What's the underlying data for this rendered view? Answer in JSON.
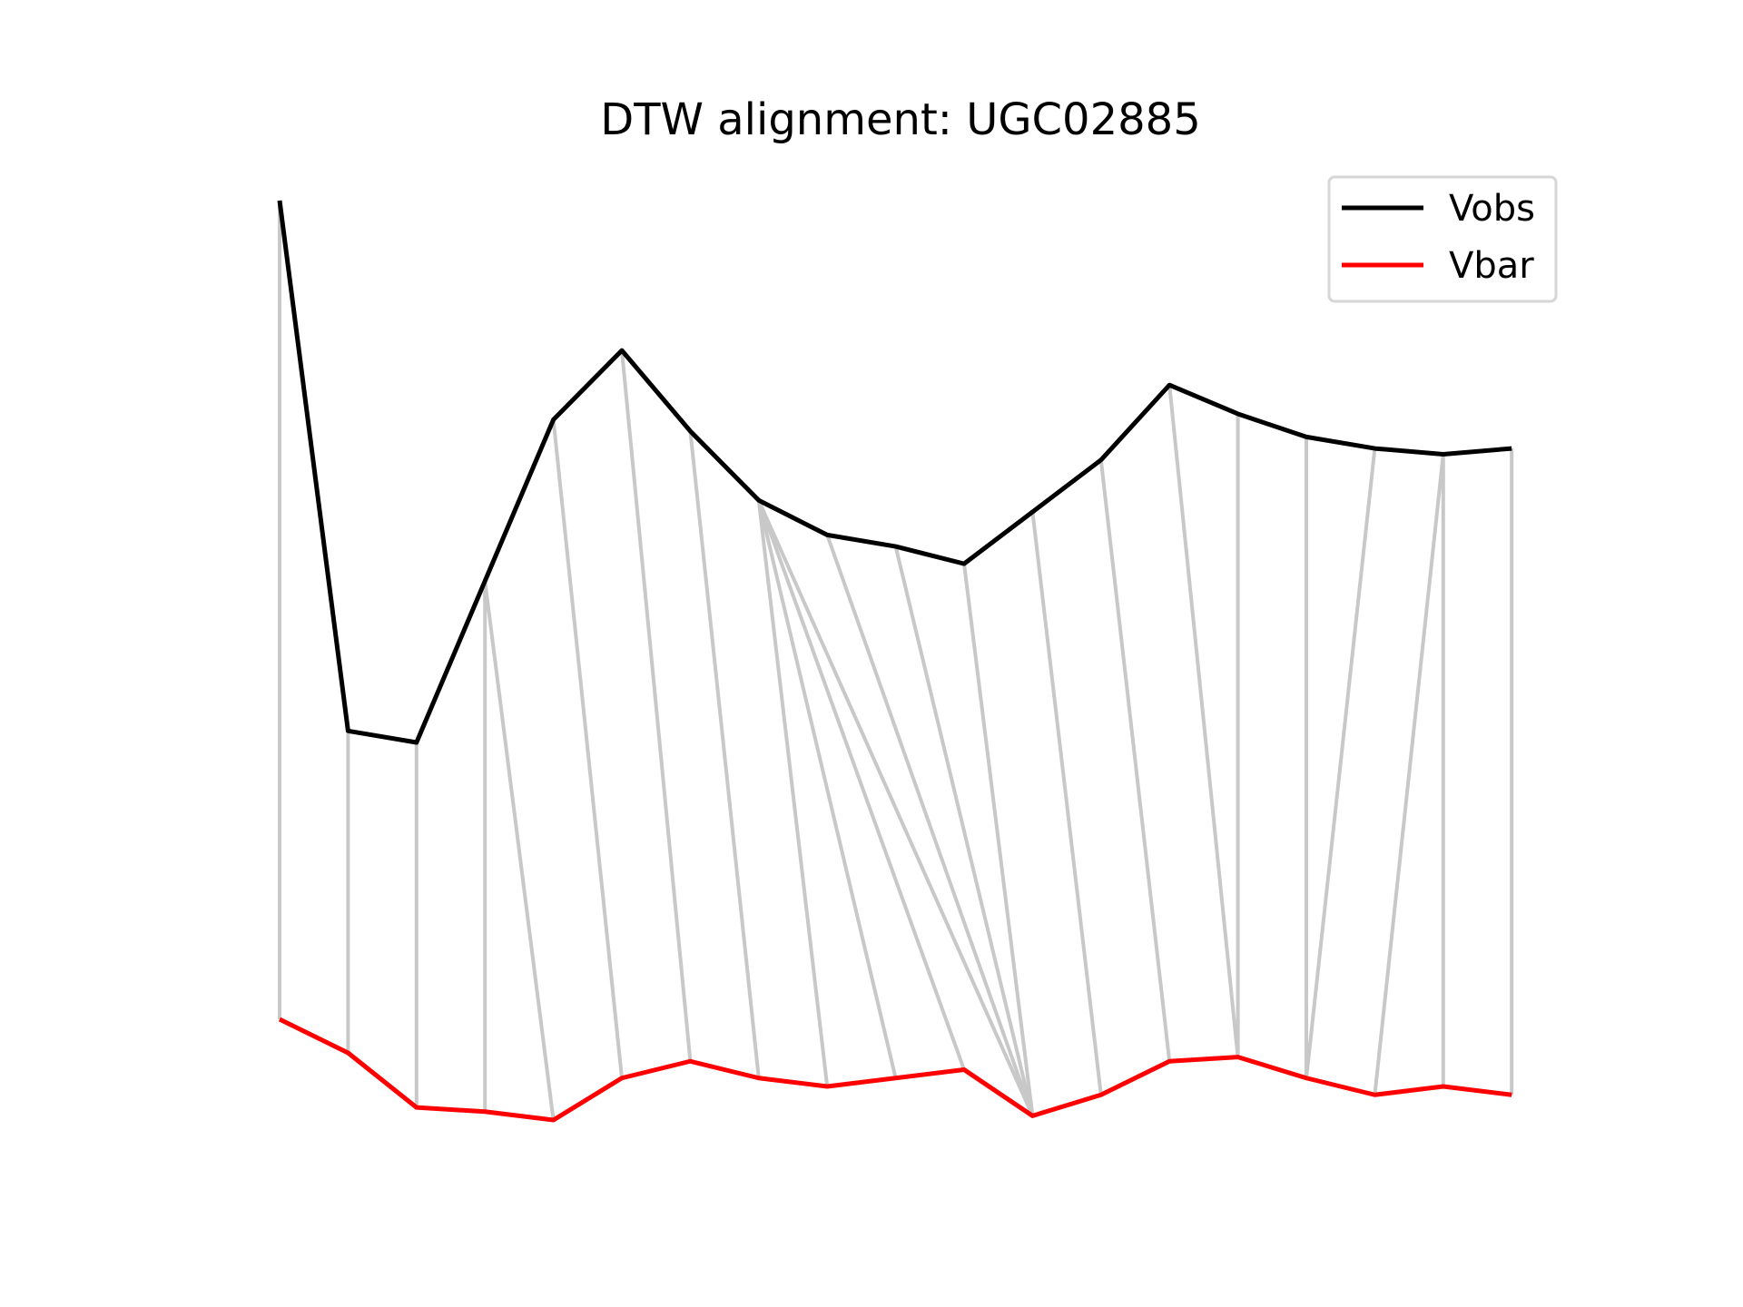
{
  "chart_data": {
    "type": "line",
    "title": "DTW alignment: UGC02885",
    "xlabel": "",
    "ylabel": "",
    "axes_visible": false,
    "grid": false,
    "legend_position": "top-right",
    "colors": {
      "background": "#ffffff",
      "connector": "#c8c8c8",
      "legend_border": "#d6d6d6"
    },
    "series": [
      {
        "name": "Vobs",
        "color": "#000000",
        "x": [
          0,
          1,
          2,
          3,
          4,
          5,
          6,
          7,
          8,
          9,
          10,
          11,
          12,
          13,
          14,
          15,
          16,
          17,
          18
        ],
        "values": [
          1.0,
          0.54,
          0.53,
          0.67,
          0.81,
          0.87,
          0.8,
          0.74,
          0.71,
          0.7,
          0.685,
          0.73,
          0.775,
          0.84,
          0.815,
          0.795,
          0.785,
          0.78,
          0.785
        ]
      },
      {
        "name": "Vbar",
        "color": "#ff0000",
        "x": [
          0,
          1,
          2,
          3,
          4,
          5,
          6,
          7,
          8,
          9,
          10,
          11,
          12,
          13,
          14,
          15,
          16,
          17,
          18
        ],
        "values": [
          0.12,
          0.08,
          0.015,
          0.01,
          0.0,
          0.05,
          0.07,
          0.05,
          0.04,
          0.05,
          0.06,
          0.005,
          0.03,
          0.07,
          0.075,
          0.05,
          0.03,
          0.04,
          0.03
        ]
      }
    ],
    "alignment_pairs": [
      [
        0,
        0
      ],
      [
        1,
        1
      ],
      [
        2,
        2
      ],
      [
        3,
        3
      ],
      [
        3,
        4
      ],
      [
        4,
        5
      ],
      [
        5,
        6
      ],
      [
        6,
        7
      ],
      [
        7,
        8
      ],
      [
        7,
        9
      ],
      [
        7,
        10
      ],
      [
        7,
        11
      ],
      [
        8,
        11
      ],
      [
        9,
        11
      ],
      [
        10,
        11
      ],
      [
        11,
        12
      ],
      [
        12,
        13
      ],
      [
        13,
        14
      ],
      [
        14,
        14
      ],
      [
        15,
        15
      ],
      [
        16,
        15
      ],
      [
        17,
        16
      ],
      [
        17,
        17
      ],
      [
        18,
        18
      ]
    ]
  }
}
